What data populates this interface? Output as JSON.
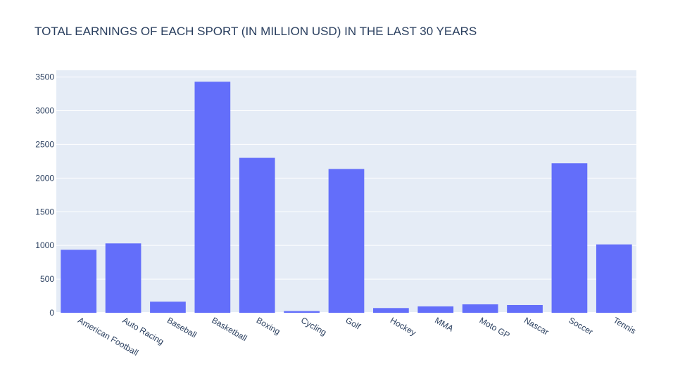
{
  "chart_data": {
    "type": "bar",
    "title": "TOTAL EARNINGS OF EACH SPORT (IN MILLION USD) IN THE LAST 30 YEARS",
    "xlabel": "",
    "ylabel": "",
    "categories": [
      "American Football",
      "Auto Racing",
      "Baseball",
      "Basketball",
      "Boxing",
      "Cycling",
      "Golf",
      "Hockey",
      "MMA",
      "Moto GP",
      "Nascar",
      "Soccer",
      "Tennis"
    ],
    "values": [
      935,
      1030,
      165,
      3430,
      2300,
      25,
      2135,
      70,
      95,
      125,
      115,
      2220,
      1015
    ],
    "ylim": [
      0,
      3600
    ],
    "yticks": [
      0,
      500,
      1000,
      1500,
      2000,
      2500,
      3000,
      3500
    ],
    "ytick_labels": [
      "0",
      "500",
      "1000",
      "1500",
      "2000",
      "2500",
      "3000",
      "3500"
    ],
    "grid": true,
    "colors": {
      "bar": "#636efa",
      "plot_background": "#e5ecf6",
      "gridline": "#ffffff",
      "text": "#2a3f5f"
    }
  }
}
